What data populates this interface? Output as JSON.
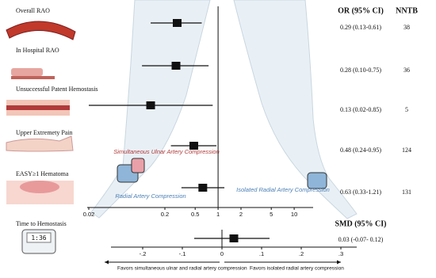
{
  "chart_data": [
    {
      "type": "forest",
      "xscale": "log",
      "xlim": [
        0.015,
        20
      ],
      "xticks": [
        0.02,
        0.2,
        0.5,
        1,
        2,
        5,
        10
      ],
      "reference": 1,
      "header": "OR (95% CI)",
      "extra_header": "NNTB",
      "categories": [
        "Overall RAO",
        "In Hospital RAO",
        "Unsuccessful Patent Hemostasis",
        "Upper Extremety Pain",
        "EASY≥1 Hematoma"
      ],
      "values": [
        0.29,
        0.28,
        0.13,
        0.48,
        0.63
      ],
      "lower": [
        0.13,
        0.1,
        0.02,
        0.24,
        0.33
      ],
      "upper": [
        0.61,
        0.75,
        0.85,
        0.95,
        1.21
      ],
      "value_labels": [
        "0.29 (0.13-0.61)",
        "0.28 (0.10-0.75)",
        "0.13 (0.02-0.85)",
        "0.48 (0.24-0.95)",
        "0.63 (0.33-1.21)"
      ],
      "extra": [
        38,
        36,
        5,
        124,
        131
      ],
      "color": "#111111",
      "annotations": [
        "Simultaneous Ulnar Artery Compression",
        "Radial Artery Compression",
        "Isolated Radial Artery Compression"
      ]
    },
    {
      "type": "forest",
      "xscale": "linear",
      "xlim": [
        -0.3,
        0.35
      ],
      "xticks": [
        {
          "value": -0.2,
          "label": "-.2"
        },
        {
          "value": -0.1,
          "label": "-.1"
        },
        0,
        {
          "value": 0.1,
          "label": ".1"
        },
        {
          "value": 0.2,
          "label": ".2"
        },
        {
          "value": 0.3,
          "label": ".3"
        }
      ],
      "reference": 0,
      "header": "SMD (95% CI)",
      "categories": [
        "Time to Hemostasis"
      ],
      "values": [
        0.03
      ],
      "lower": [
        -0.07
      ],
      "upper": [
        0.12
      ],
      "value_labels": [
        "0.03 (-0.07- 0.12)"
      ],
      "color": "#111111",
      "favors": [
        "Favors simultaneous ulnar and radial artery compression",
        "Favors isolated radial artery compression"
      ]
    }
  ],
  "illustration": {
    "timer": "1:36"
  }
}
